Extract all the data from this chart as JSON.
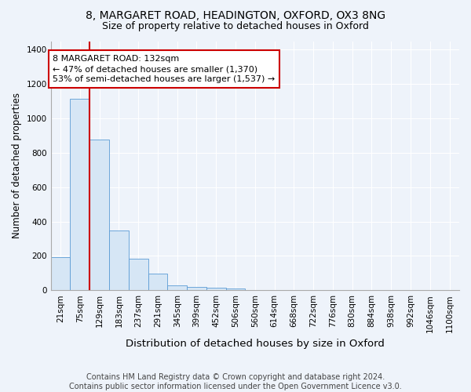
{
  "title1": "8, MARGARET ROAD, HEADINGTON, OXFORD, OX3 8NG",
  "title2": "Size of property relative to detached houses in Oxford",
  "xlabel": "Distribution of detached houses by size in Oxford",
  "ylabel": "Number of detached properties",
  "categories": [
    "21sqm",
    "75sqm",
    "129sqm",
    "183sqm",
    "237sqm",
    "291sqm",
    "345sqm",
    "399sqm",
    "452sqm",
    "506sqm",
    "560sqm",
    "614sqm",
    "668sqm",
    "722sqm",
    "776sqm",
    "830sqm",
    "884sqm",
    "938sqm",
    "992sqm",
    "1046sqm",
    "1100sqm"
  ],
  "values": [
    193,
    1115,
    878,
    348,
    183,
    95,
    28,
    18,
    15,
    8,
    0,
    0,
    0,
    3,
    0,
    0,
    0,
    0,
    0,
    0,
    0
  ],
  "bar_color": "#d6e6f5",
  "bar_edge_color": "#5b9bd5",
  "highlight_index": 2,
  "highlight_line_color": "#cc0000",
  "annotation_box_color": "#cc0000",
  "annotation_text": "8 MARGARET ROAD: 132sqm\n← 47% of detached houses are smaller (1,370)\n53% of semi-detached houses are larger (1,537) →",
  "ylim": [
    0,
    1450
  ],
  "yticks": [
    0,
    200,
    400,
    600,
    800,
    1000,
    1200,
    1400
  ],
  "bg_color": "#eef3fa",
  "plot_bg_color": "#eef3fa",
  "footer": "Contains HM Land Registry data © Crown copyright and database right 2024.\nContains public sector information licensed under the Open Government Licence v3.0.",
  "title1_fontsize": 10,
  "title2_fontsize": 9,
  "xlabel_fontsize": 9.5,
  "ylabel_fontsize": 8.5,
  "footer_fontsize": 7,
  "tick_fontsize": 7.5
}
